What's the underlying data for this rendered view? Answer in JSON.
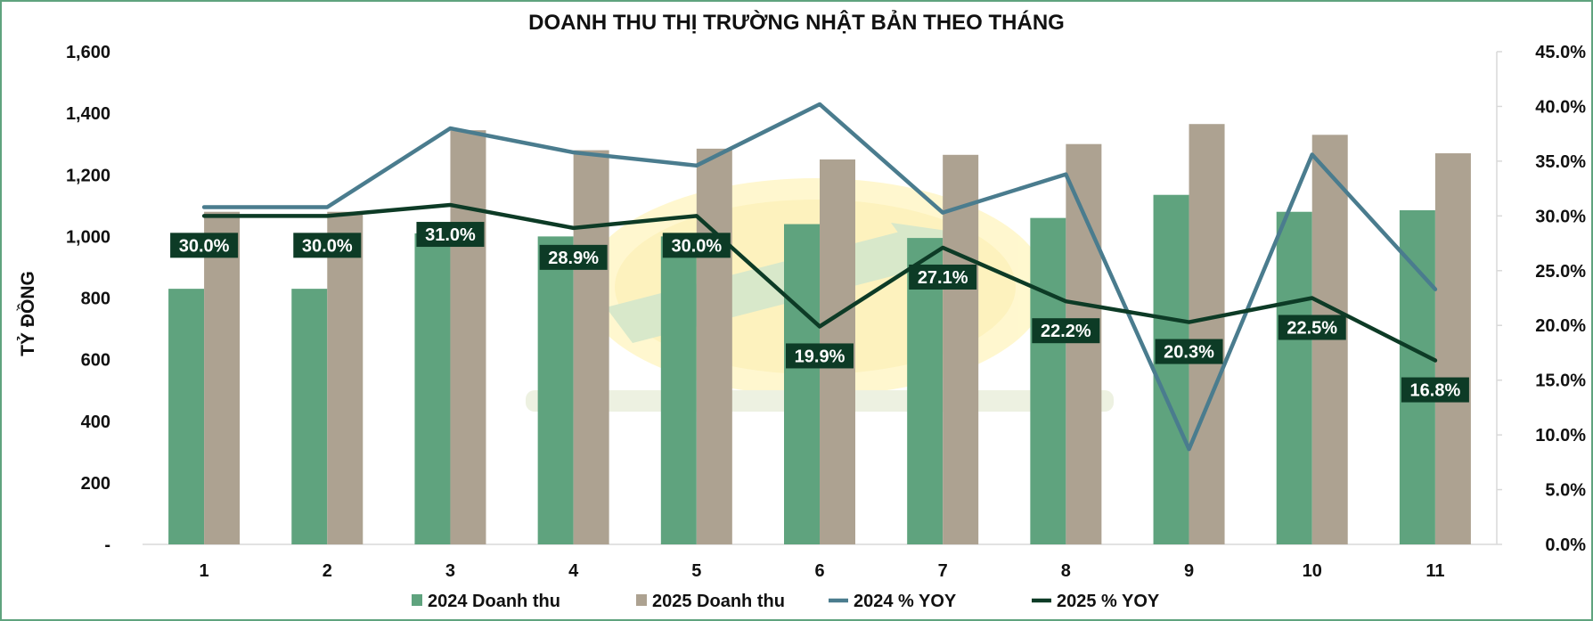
{
  "chart_data": {
    "type": "bar",
    "title": "DOANH THU THỊ TRƯỜNG NHẬT BẢN THEO THÁNG",
    "ylabel": "TỶ ĐỒNG",
    "y2label": "",
    "categories": [
      "1",
      "2",
      "3",
      "4",
      "5",
      "6",
      "7",
      "8",
      "9",
      "10",
      "11"
    ],
    "ylim": [
      0,
      1600
    ],
    "y_ticks": [
      "-",
      "200",
      "400",
      "600",
      "800",
      "1,000",
      "1,200",
      "1,400",
      "1,600"
    ],
    "y2lim": [
      0,
      45
    ],
    "y2_ticks": [
      "0.0%",
      "5.0%",
      "10.0%",
      "15.0%",
      "20.0%",
      "25.0%",
      "30.0%",
      "35.0%",
      "40.0%",
      "45.0%"
    ],
    "series": [
      {
        "name": "2024 Doanh thu",
        "kind": "bar",
        "axis": "left",
        "color": "#5fa37e",
        "values": [
          830,
          830,
          1010,
          1000,
          1000,
          1040,
          995,
          1060,
          1135,
          1080,
          1085
        ]
      },
      {
        "name": "2025 Doanh thu",
        "kind": "bar",
        "axis": "left",
        "color": "#ada291",
        "values": [
          1080,
          1080,
          1345,
          1280,
          1285,
          1250,
          1265,
          1300,
          1365,
          1330,
          1270
        ]
      },
      {
        "name": "2024 % YOY",
        "kind": "line",
        "axis": "right",
        "color": "#4a7c8e",
        "values": [
          30.8,
          30.8,
          38.0,
          35.8,
          34.6,
          40.2,
          30.3,
          33.8,
          8.7,
          35.6,
          23.3
        ]
      },
      {
        "name": "2025 % YOY",
        "kind": "line",
        "axis": "right",
        "color": "#0d3b26",
        "values": [
          30.0,
          30.0,
          31.0,
          28.9,
          30.0,
          19.9,
          27.1,
          22.2,
          20.3,
          22.5,
          16.8
        ],
        "labels": [
          "30.0%",
          "30.0%",
          "31.0%",
          "28.9%",
          "30.0%",
          "19.9%",
          "27.1%",
          "22.2%",
          "20.3%",
          "22.5%",
          "16.8%"
        ]
      }
    ],
    "grid": false,
    "legend": "bottom"
  }
}
